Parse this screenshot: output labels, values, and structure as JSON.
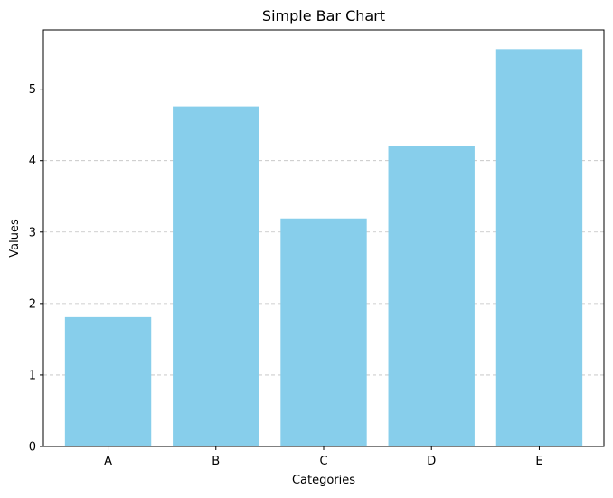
{
  "chart_data": {
    "type": "bar",
    "title": "Simple Bar Chart",
    "xlabel": "Categories",
    "ylabel": "Values",
    "categories": [
      "A",
      "B",
      "C",
      "D",
      "E"
    ],
    "values": [
      1.81,
      4.76,
      3.19,
      4.21,
      5.56
    ],
    "ylim": [
      0,
      5.83
    ],
    "yticks": [
      0,
      1,
      2,
      3,
      4,
      5
    ],
    "grid": "y-dashed",
    "colors": {
      "bar": "#87CEEB",
      "grid": "#c0c0c0",
      "axis": "#000000"
    }
  }
}
